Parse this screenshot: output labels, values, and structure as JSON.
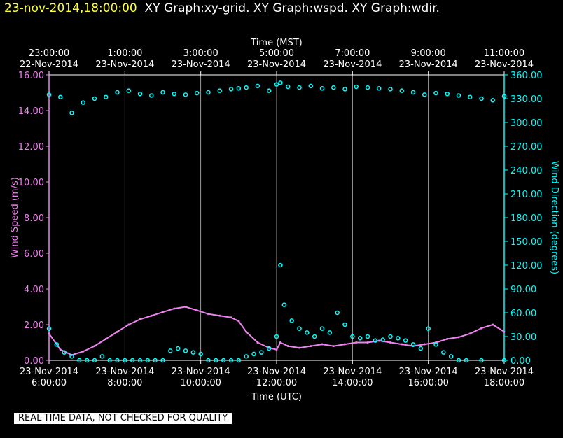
{
  "header": {
    "timestamp": "23-nov-2014,18:00:00",
    "graphs": "XY Graph:xy-grid.  XY Graph:wspd.  XY Graph:wdir."
  },
  "disclaimer": "REAL-TIME DATA, NOT CHECKED FOR QUALITY",
  "colors": {
    "background": "#000000",
    "wind_speed": "#ee82ee",
    "wind_direction": "#00ffff",
    "grid": "#ffffff",
    "timestamp": "#ffff33"
  },
  "chart_data": {
    "type": "line",
    "x_top_label": "Time (MST)",
    "x_bottom_label": "Time (UTC)",
    "y_left_label": "Wind Speed (m/s)",
    "y_right_label": "Wind Direction (degrees)",
    "y_left_range": [
      0,
      16
    ],
    "y_right_range": [
      0,
      360
    ],
    "y_left_ticks": [
      "0.00",
      "2.00",
      "4.00",
      "6.00",
      "8.00",
      "10.00",
      "12.00",
      "14.00",
      "16.00"
    ],
    "y_right_ticks": [
      "0.00",
      "30.00",
      "60.00",
      "90.00",
      "120.00",
      "150.00",
      "180.00",
      "210.00",
      "240.00",
      "270.00",
      "300.00",
      "330.00",
      "360.00"
    ],
    "x_range_utc_hours": [
      6,
      18
    ],
    "x_ticks_top": [
      {
        "time": "23:00:00",
        "date": "22-Nov-2014"
      },
      {
        "time": "1:00:00",
        "date": "23-Nov-2014"
      },
      {
        "time": "3:00:00",
        "date": "23-Nov-2014"
      },
      {
        "time": "5:00:00",
        "date": "23-Nov-2014"
      },
      {
        "time": "7:00:00",
        "date": "23-Nov-2014"
      },
      {
        "time": "9:00:00",
        "date": "23-Nov-2014"
      },
      {
        "time": "11:00:00",
        "date": "23-Nov-2014"
      }
    ],
    "x_ticks_bottom": [
      {
        "time": "6:00:00",
        "date": "23-Nov-2014"
      },
      {
        "time": "8:00:00",
        "date": "23-Nov-2014"
      },
      {
        "time": "10:00:00",
        "date": "23-Nov-2014"
      },
      {
        "time": "12:00:00",
        "date": "23-Nov-2014"
      },
      {
        "time": "14:00:00",
        "date": "23-Nov-2014"
      },
      {
        "time": "16:00:00",
        "date": "23-Nov-2014"
      },
      {
        "time": "18:00:00",
        "date": "23-Nov-2014"
      }
    ],
    "grid": "vertical",
    "series": [
      {
        "name": "Wind Speed",
        "axis": "left",
        "style": "line",
        "x": [
          6.0,
          6.3,
          6.6,
          6.9,
          7.2,
          7.5,
          7.8,
          8.1,
          8.4,
          8.7,
          9.0,
          9.3,
          9.6,
          9.9,
          10.2,
          10.5,
          10.8,
          11.0,
          11.2,
          11.5,
          11.8,
          12.0,
          12.1,
          12.3,
          12.6,
          12.9,
          13.2,
          13.5,
          13.8,
          14.1,
          14.4,
          14.7,
          15.0,
          15.3,
          15.6,
          15.9,
          16.2,
          16.5,
          16.8,
          17.1,
          17.4,
          17.7,
          18.0
        ],
        "y": [
          1.5,
          0.6,
          0.3,
          0.5,
          0.8,
          1.2,
          1.6,
          2.0,
          2.3,
          2.5,
          2.7,
          2.9,
          3.0,
          2.8,
          2.6,
          2.5,
          2.4,
          2.2,
          1.6,
          1.0,
          0.7,
          0.6,
          1.0,
          0.8,
          0.7,
          0.8,
          0.9,
          0.8,
          0.9,
          1.0,
          1.0,
          1.1,
          1.0,
          0.9,
          0.8,
          0.9,
          1.0,
          1.2,
          1.3,
          1.5,
          1.8,
          2.0,
          1.6
        ]
      },
      {
        "name": "Wind Direction",
        "axis": "right",
        "style": "markers",
        "x": [
          6.0,
          6.3,
          6.6,
          6.9,
          7.2,
          7.5,
          7.8,
          8.1,
          8.4,
          8.7,
          9.0,
          9.3,
          9.6,
          9.9,
          10.2,
          10.5,
          10.8,
          11.0,
          11.2,
          11.5,
          11.8,
          12.0,
          12.1,
          12.3,
          12.6,
          12.9,
          13.2,
          13.5,
          13.8,
          14.1,
          14.4,
          14.7,
          15.0,
          15.3,
          15.6,
          15.9,
          16.2,
          16.5,
          16.8,
          17.1,
          17.4,
          17.7,
          18.0
        ],
        "y": [
          335,
          332,
          312,
          325,
          330,
          332,
          338,
          340,
          336,
          334,
          338,
          336,
          335,
          337,
          338,
          340,
          342,
          343,
          344,
          346,
          340,
          348,
          350,
          345,
          344,
          346,
          343,
          344,
          342,
          345,
          344,
          343,
          342,
          340,
          338,
          335,
          337,
          336,
          334,
          332,
          330,
          328,
          333
        ],
        "low_x": [
          6.0,
          6.2,
          6.4,
          6.6,
          6.8,
          7.0,
          7.2,
          7.4,
          7.6,
          7.8,
          8.0,
          8.2,
          8.4,
          8.6,
          8.8,
          9.0,
          9.2,
          9.4,
          9.6,
          9.8,
          10.0,
          10.2,
          10.4,
          10.6,
          10.8,
          11.0,
          11.2,
          11.4,
          11.6,
          11.8,
          12.0,
          12.1,
          12.2,
          12.4,
          12.6,
          12.8,
          13.0,
          13.2,
          13.4,
          13.6,
          13.8,
          14.0,
          14.2,
          14.4,
          14.6,
          14.8,
          15.0,
          15.2,
          15.4,
          15.6,
          15.8,
          16.0,
          16.2,
          16.4,
          16.6,
          16.8,
          17.0,
          17.4,
          18.0
        ],
        "low_y": [
          40,
          20,
          10,
          5,
          0,
          0,
          0,
          5,
          0,
          0,
          0,
          0,
          0,
          0,
          0,
          0,
          12,
          15,
          12,
          10,
          8,
          0,
          0,
          0,
          0,
          0,
          5,
          8,
          10,
          15,
          30,
          120,
          70,
          50,
          40,
          35,
          30,
          40,
          35,
          60,
          45,
          30,
          28,
          30,
          25,
          26,
          30,
          28,
          25,
          20,
          15,
          40,
          20,
          10,
          5,
          0,
          0,
          0,
          0
        ]
      }
    ]
  }
}
